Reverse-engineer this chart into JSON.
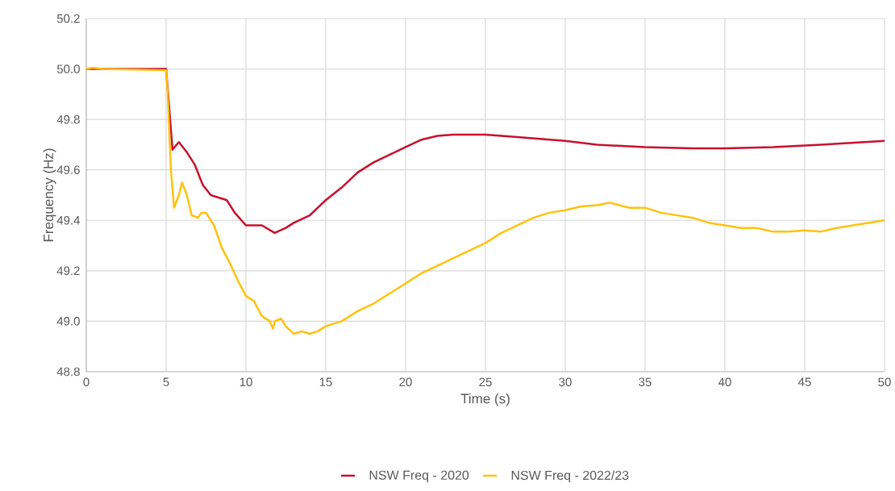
{
  "chart_data": {
    "type": "line",
    "xlabel": "Time (s)",
    "ylabel": "Frequency (Hz)",
    "xlim": [
      0,
      50
    ],
    "xticks": [
      0,
      5,
      10,
      15,
      20,
      25,
      30,
      35,
      40,
      45,
      50
    ],
    "ylim": [
      48.8,
      50.2
    ],
    "yticks": [
      {
        "value": 48.8,
        "label": "48.8"
      },
      {
        "value": 49.0,
        "label": "49.0"
      },
      49.2,
      49.4,
      49.6,
      49.8,
      {
        "value": 50.0,
        "label": "50.0"
      },
      50.2
    ],
    "grid": true,
    "legend": "bottom",
    "marker": "none",
    "line_style": "solid",
    "series": [
      {
        "name": "NSW Freq - 2020",
        "color": "#c8102e",
        "x": [
          0,
          5,
          5.4,
          5.8,
          6.3,
          6.8,
          7.3,
          7.8,
          8.3,
          8.8,
          9.3,
          10,
          11,
          11.8,
          12.5,
          13,
          14,
          15,
          16,
          17,
          18,
          19,
          20,
          21,
          22,
          23,
          25,
          27,
          30,
          32,
          35,
          38,
          40,
          43,
          46,
          50
        ],
        "values": [
          50.0,
          50.0,
          49.68,
          49.71,
          49.67,
          49.62,
          49.54,
          49.5,
          49.49,
          49.48,
          49.43,
          49.38,
          49.38,
          49.35,
          49.37,
          49.39,
          49.42,
          49.48,
          49.53,
          49.59,
          49.63,
          49.66,
          49.69,
          49.72,
          49.735,
          49.74,
          49.74,
          49.73,
          49.715,
          49.7,
          49.69,
          49.685,
          49.685,
          49.69,
          49.7,
          49.715
        ]
      },
      {
        "name": "NSW Freq - 2022/23",
        "color": "#ffc20e",
        "x": [
          0,
          0.4,
          1,
          5,
          5.1,
          5.3,
          5.5,
          5.8,
          6,
          6.3,
          6.6,
          7,
          7.2,
          7.5,
          8,
          8.5,
          9,
          9.5,
          10,
          10.5,
          11,
          11.5,
          11.7,
          11.8,
          12.2,
          12.5,
          13,
          13.5,
          14,
          14.5,
          15,
          16,
          17,
          18,
          19,
          20,
          21,
          22,
          23,
          24,
          25,
          26,
          27,
          28,
          29,
          30,
          31,
          32,
          32.8,
          34,
          35,
          36,
          37,
          38,
          39,
          40,
          41,
          42,
          43,
          44,
          45,
          46,
          47,
          48,
          49,
          50
        ],
        "values": [
          50.0,
          50.005,
          50.0,
          49.995,
          49.9,
          49.6,
          49.45,
          49.5,
          49.55,
          49.5,
          49.42,
          49.41,
          49.43,
          49.43,
          49.38,
          49.29,
          49.23,
          49.16,
          49.1,
          49.08,
          49.02,
          49.0,
          48.97,
          49.0,
          49.01,
          48.98,
          48.95,
          48.96,
          48.95,
          48.96,
          48.98,
          49.0,
          49.04,
          49.07,
          49.11,
          49.15,
          49.19,
          49.22,
          49.25,
          49.28,
          49.31,
          49.35,
          49.38,
          49.41,
          49.43,
          49.44,
          49.455,
          49.46,
          49.47,
          49.45,
          49.45,
          49.43,
          49.42,
          49.41,
          49.39,
          49.38,
          49.37,
          49.37,
          49.355,
          49.355,
          49.36,
          49.355,
          49.37,
          49.38,
          49.39,
          49.4
        ]
      }
    ]
  }
}
